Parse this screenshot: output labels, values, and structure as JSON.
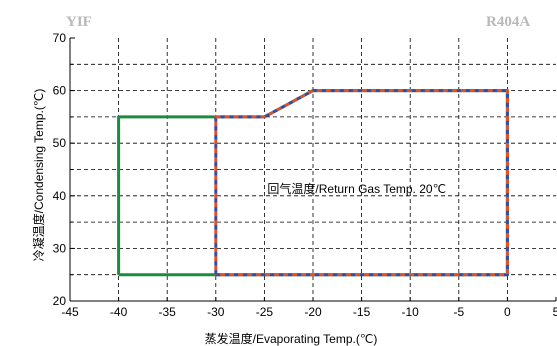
{
  "header": {
    "left": "YIF",
    "right": "R404A"
  },
  "chart_data": {
    "type": "line",
    "xlabel": "蒸发温度/Evaporating Temp.(℃)",
    "ylabel": "冷凝温度/Condensing Temp.(℃)",
    "xlim": [
      -45,
      5
    ],
    "ylim": [
      20,
      70
    ],
    "xticks": [
      "-45",
      "-40",
      "-35",
      "-30",
      "-25",
      "-20",
      "-15",
      "-10",
      "-5",
      "0",
      "5"
    ],
    "yticks": [
      "20",
      "30",
      "40",
      "50",
      "60",
      "70"
    ],
    "grid": true,
    "annotations": [
      {
        "text": "回气温度/Return Gas Temp. 20℃",
        "x": -15.5,
        "y": 40.5
      }
    ],
    "series": [
      {
        "style": "solid",
        "color": "#1e8a3c",
        "points": [
          [
            -40,
            25
          ],
          [
            -40,
            55
          ],
          [
            -25,
            55
          ],
          [
            -20,
            60
          ],
          [
            0,
            60
          ],
          [
            0,
            25
          ],
          [
            -40,
            25
          ]
        ]
      },
      {
        "style": "dashed",
        "color": "#2e4fa8",
        "dash_color": "#d9532c",
        "points": [
          [
            -30,
            25
          ],
          [
            -30,
            55
          ],
          [
            -25,
            55
          ],
          [
            -20,
            60
          ],
          [
            0,
            60
          ],
          [
            0,
            25
          ],
          [
            -30,
            25
          ]
        ]
      }
    ]
  }
}
